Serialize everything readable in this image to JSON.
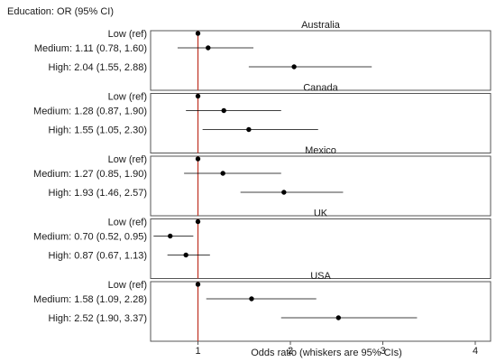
{
  "chart_data": {
    "type": "forest",
    "title": "Education: OR (95% CI)",
    "xlabel": "Odds ratio (whiskers are 95% CIs)",
    "xlim": [
      0,
      4
    ],
    "xticks": [
      1,
      2,
      3,
      4
    ],
    "reference_line": 1,
    "colors": {
      "reference": "#c0392b",
      "marker": "#000000",
      "whisker": "#000000",
      "panel_border": "#555555"
    },
    "panels": [
      {
        "name": "Australia",
        "rows": [
          {
            "label": "Low (ref)",
            "or": 1.0,
            "lo": null,
            "hi": null
          },
          {
            "label": "Medium: 1.11 (0.78, 1.60)",
            "or": 1.11,
            "lo": 0.78,
            "hi": 1.6
          },
          {
            "label": "High: 2.04 (1.55, 2.88)",
            "or": 2.04,
            "lo": 1.55,
            "hi": 2.88
          }
        ]
      },
      {
        "name": "Canada",
        "rows": [
          {
            "label": "Low (ref)",
            "or": 1.0,
            "lo": null,
            "hi": null
          },
          {
            "label": "Medium: 1.28 (0.87, 1.90)",
            "or": 1.28,
            "lo": 0.87,
            "hi": 1.9
          },
          {
            "label": "High: 1.55 (1.05, 2.30)",
            "or": 1.55,
            "lo": 1.05,
            "hi": 2.3
          }
        ]
      },
      {
        "name": "Mexico",
        "rows": [
          {
            "label": "Low (ref)",
            "or": 1.0,
            "lo": null,
            "hi": null
          },
          {
            "label": "Medium: 1.27 (0.85, 1.90)",
            "or": 1.27,
            "lo": 0.85,
            "hi": 1.9
          },
          {
            "label": "High: 1.93 (1.46, 2.57)",
            "or": 1.93,
            "lo": 1.46,
            "hi": 2.57
          }
        ]
      },
      {
        "name": "UK",
        "rows": [
          {
            "label": "Low (ref)",
            "or": 1.0,
            "lo": null,
            "hi": null
          },
          {
            "label": "Medium: 0.70 (0.52, 0.95)",
            "or": 0.7,
            "lo": 0.52,
            "hi": 0.95
          },
          {
            "label": "High: 0.87 (0.67, 1.13)",
            "or": 0.87,
            "lo": 0.67,
            "hi": 1.13
          }
        ]
      },
      {
        "name": "USA",
        "rows": [
          {
            "label": "Low (ref)",
            "or": 1.0,
            "lo": null,
            "hi": null
          },
          {
            "label": "Medium: 1.58 (1.09, 2.28)",
            "or": 1.58,
            "lo": 1.09,
            "hi": 2.28
          },
          {
            "label": "High: 2.52 (1.90, 3.37)",
            "or": 2.52,
            "lo": 1.9,
            "hi": 3.37
          }
        ]
      }
    ]
  }
}
